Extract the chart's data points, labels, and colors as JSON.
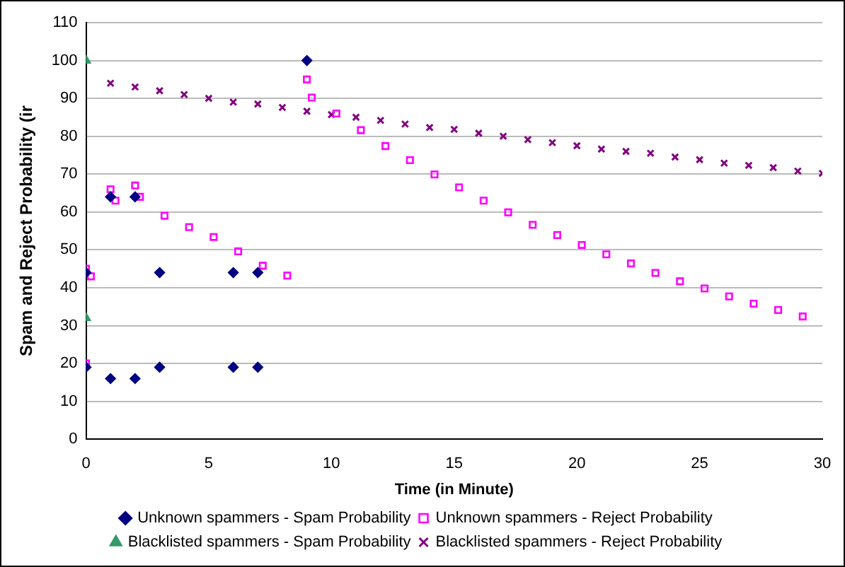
{
  "chart_data": {
    "type": "scatter",
    "xlabel": "Time (in Minute)",
    "ylabel": "Spam and Reject Probability (ir",
    "xlim": [
      0,
      30
    ],
    "xticks": [
      0,
      5,
      10,
      15,
      20,
      25,
      30
    ],
    "ylim": [
      0,
      110
    ],
    "yticks": [
      0,
      10,
      20,
      30,
      40,
      50,
      60,
      70,
      80,
      90,
      100,
      110
    ],
    "grid": "y",
    "legend": "bottom",
    "series": [
      {
        "name": "Unknown spammers - Spam Probability",
        "color": "#000080",
        "marker": "diamond",
        "x": [
          0,
          0,
          1,
          1,
          2,
          2,
          3,
          3,
          6,
          6,
          7,
          7,
          9
        ],
        "values": [
          44,
          19,
          64,
          16,
          64,
          16,
          44,
          19,
          44,
          19,
          44,
          19,
          100
        ]
      },
      {
        "name": "Unknown spammers - Reject Probability",
        "color": "#ff00ff",
        "marker": "square",
        "x": [
          0,
          0,
          0.2,
          1,
          1.2,
          2,
          2.2,
          3.2,
          4.2,
          5.2,
          6.2,
          7.2,
          8.2,
          9,
          9.2,
          10.2,
          11.2,
          12.2,
          13.2,
          14.2,
          15.2,
          16.2,
          17.2,
          18.2,
          19.2,
          20.2,
          21.2,
          22.2,
          23.2,
          24.2,
          25.2,
          26.2,
          27.2,
          28.2,
          29.2
        ],
        "values": [
          45,
          20,
          43,
          66,
          63,
          67,
          64,
          59,
          56,
          53.4,
          49.6,
          45.8,
          43.2,
          95,
          90.2,
          86,
          81.6,
          77.4,
          73.7,
          69.9,
          66.5,
          63,
          59.9,
          56.6,
          53.9,
          51.3,
          48.8,
          46.4,
          43.9,
          41.7,
          39.8,
          37.7,
          35.8,
          34.1,
          32.4
        ]
      },
      {
        "name": "Blacklisted spammers - Spam Probability",
        "color": "#339966",
        "marker": "triangle",
        "x": [
          0,
          0
        ],
        "values": [
          100,
          32
        ]
      },
      {
        "name": "Blacklisted spammers - Reject Probability",
        "color": "#800080",
        "marker": "cross",
        "x": [
          1,
          2,
          3,
          4,
          5,
          6,
          7,
          8,
          9,
          10,
          11,
          12,
          13,
          14,
          15,
          16,
          17,
          18,
          19,
          20,
          21,
          22,
          23,
          24,
          25,
          26,
          27,
          28,
          29,
          30
        ],
        "values": [
          94,
          93,
          92,
          91,
          90,
          89,
          88.5,
          87.6,
          86.6,
          85.7,
          85,
          84.2,
          83.2,
          82.3,
          81.8,
          80.8,
          80,
          79.1,
          78.3,
          77.5,
          76.6,
          76,
          75.5,
          74.5,
          73.8,
          72.9,
          72.3,
          71.7,
          70.8,
          70.2
        ]
      }
    ]
  }
}
